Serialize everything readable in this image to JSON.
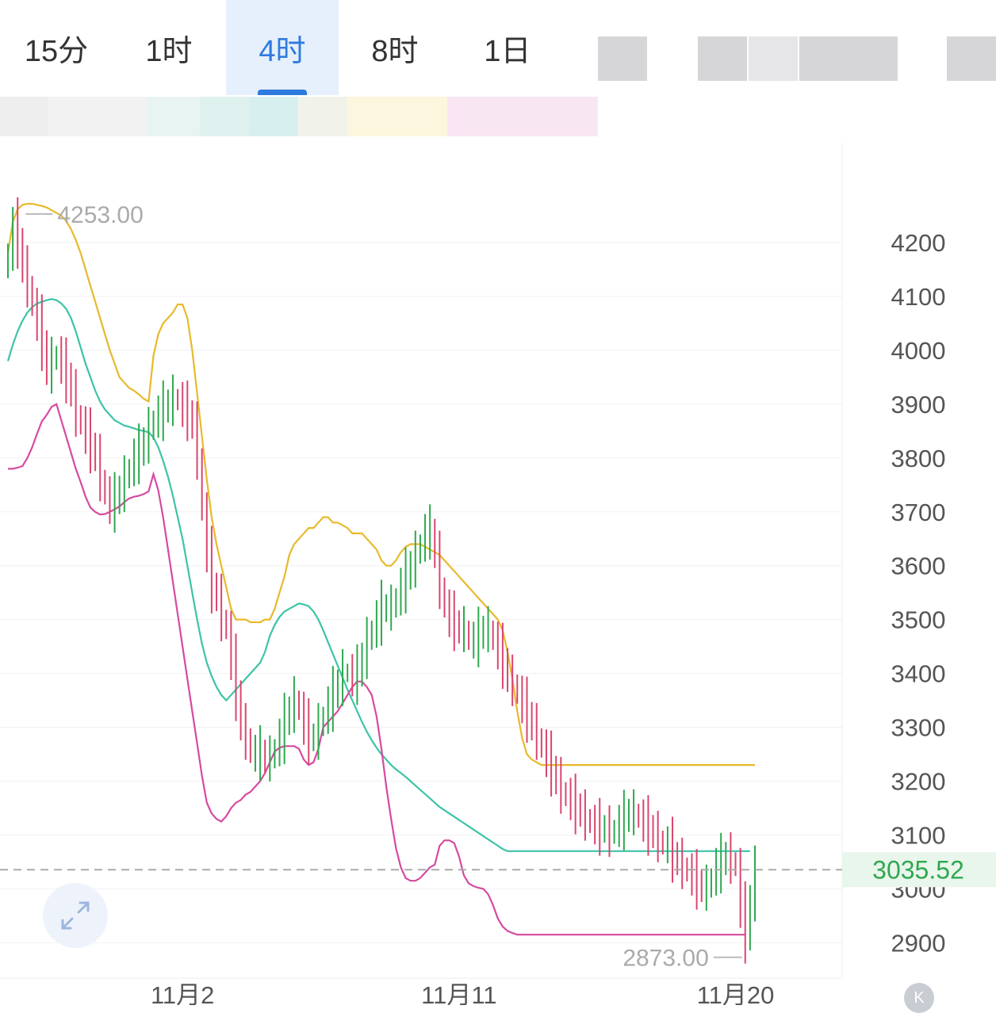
{
  "timeframe_tabs": [
    {
      "label": "15分",
      "active": false
    },
    {
      "label": "1时",
      "active": false
    },
    {
      "label": "4时",
      "active": true
    },
    {
      "label": "8时",
      "active": false
    },
    {
      "label": "1日",
      "active": false
    }
  ],
  "colors": {
    "up": "#2fa84f",
    "down": "#d9466e",
    "upper_band": "#e8b92c",
    "middle_band": "#3cc4a6",
    "lower_band": "#d64aa0",
    "accent": "#2e7be0",
    "axis_text": "#555555",
    "price_badge_bg": "#e9f6ec",
    "price_badge_text": "#2fa84f"
  },
  "icons": {
    "expand": "expand-arrows-icon",
    "k_button": "k-circle-icon"
  },
  "k_button_label": "K",
  "chart_data": {
    "type": "candlestick",
    "title": "",
    "ylim": [
      2800,
      4380
    ],
    "y_ticks": [
      4200,
      4100,
      4000,
      3900,
      3800,
      3700,
      3600,
      3500,
      3400,
      3300,
      3200,
      3100,
      3000,
      2900
    ],
    "x_tick_labels": [
      "11月2",
      "11月11",
      "11月20"
    ],
    "x_tick_indices": [
      36,
      93,
      150
    ],
    "high_marker": "4253.00",
    "low_marker": "2873.00",
    "high_marker_index": 3,
    "low_marker_index": 152,
    "current_price": "3035.52",
    "current_price_value": 3035.52,
    "closes": [
      4180,
      4230,
      4200,
      4150,
      4120,
      4080,
      4050,
      4010,
      3960,
      3980,
      3990,
      3970,
      3950,
      3920,
      3880,
      3860,
      3840,
      3820,
      3800,
      3760,
      3730,
      3710,
      3720,
      3740,
      3760,
      3780,
      3800,
      3810,
      3830,
      3850,
      3870,
      3880,
      3890,
      3900,
      3910,
      3905,
      3890,
      3880,
      3860,
      3800,
      3700,
      3620,
      3560,
      3540,
      3500,
      3480,
      3420,
      3360,
      3300,
      3280,
      3250,
      3250,
      3250,
      3240,
      3240,
      3260,
      3280,
      3310,
      3330,
      3350,
      3330,
      3300,
      3280,
      3280,
      3300,
      3320,
      3340,
      3360,
      3380,
      3400,
      3400,
      3390,
      3400,
      3430,
      3460,
      3480,
      3500,
      3520,
      3520,
      3520,
      3540,
      3560,
      3580,
      3600,
      3620,
      3640,
      3660,
      3660,
      3620,
      3560,
      3520,
      3500,
      3490,
      3480,
      3480,
      3460,
      3460,
      3470,
      3480,
      3480,
      3460,
      3440,
      3420,
      3390,
      3380,
      3360,
      3340,
      3320,
      3300,
      3280,
      3260,
      3240,
      3220,
      3200,
      3180,
      3170,
      3160,
      3150,
      3140,
      3130,
      3120,
      3115,
      3110,
      3110,
      3100,
      3110,
      3120,
      3130,
      3140,
      3140,
      3130,
      3120,
      3110,
      3100,
      3090,
      3080,
      3080,
      3060,
      3050,
      3040,
      3030,
      3020,
      3010,
      3000,
      3000,
      3020,
      3040,
      3050,
      3060,
      3050,
      3040,
      2960,
      2910,
      2980,
      3035.52
    ],
    "series": [
      {
        "key": "upper",
        "values": [
          4180,
          4238,
          4262,
          4270,
          4272,
          4272,
          4270,
          4268,
          4265,
          4260,
          4255,
          4250,
          4240,
          4225,
          4205,
          4180,
          4150,
          4120,
          4090,
          4060,
          4030,
          4000,
          3975,
          3950,
          3940,
          3930,
          3925,
          3918,
          3910,
          3905,
          3990,
          4030,
          4050,
          4060,
          4070,
          4085,
          4085,
          4060,
          4000,
          3920,
          3840,
          3760,
          3690,
          3640,
          3600,
          3560,
          3520,
          3500,
          3500,
          3500,
          3495,
          3495,
          3495,
          3500,
          3500,
          3520,
          3550,
          3580,
          3620,
          3640,
          3650,
          3660,
          3670,
          3670,
          3680,
          3690,
          3690,
          3680,
          3680,
          3675,
          3670,
          3660,
          3660,
          3660,
          3650,
          3640,
          3630,
          3610,
          3600,
          3600,
          3610,
          3625,
          3635,
          3640,
          3640,
          3640,
          3635,
          3630,
          3625,
          3620,
          3610,
          3600,
          3590,
          3580,
          3570,
          3560,
          3550,
          3540,
          3530,
          3520,
          3510,
          3500,
          3480,
          3440,
          3390,
          3330,
          3280,
          3250,
          3240,
          3235,
          3230,
          3230,
          3230,
          3230,
          3230,
          3230,
          3230,
          3230,
          3230,
          3230,
          3230,
          3230,
          3230,
          3230,
          3230,
          3230,
          3230,
          3230,
          3230,
          3230,
          3230,
          3230,
          3230,
          3230,
          3230,
          3230,
          3230,
          3230,
          3230,
          3230,
          3230,
          3230,
          3230,
          3230,
          3230,
          3230,
          3230,
          3230,
          3230,
          3230,
          3230,
          3230,
          3230,
          3230,
          3230
        ]
      },
      {
        "key": "middle",
        "values": [
          3980,
          4010,
          4035,
          4055,
          4070,
          4080,
          4087,
          4090,
          4093,
          4095,
          4093,
          4087,
          4077,
          4060,
          4035,
          4005,
          3975,
          3950,
          3925,
          3905,
          3890,
          3880,
          3870,
          3865,
          3860,
          3858,
          3855,
          3852,
          3850,
          3848,
          3838,
          3820,
          3795,
          3765,
          3730,
          3690,
          3650,
          3600,
          3550,
          3500,
          3455,
          3420,
          3395,
          3375,
          3360,
          3350,
          3360,
          3370,
          3380,
          3390,
          3400,
          3410,
          3420,
          3440,
          3470,
          3490,
          3505,
          3515,
          3520,
          3525,
          3530,
          3528,
          3525,
          3515,
          3500,
          3480,
          3458,
          3436,
          3414,
          3392,
          3370,
          3350,
          3330,
          3310,
          3292,
          3276,
          3262,
          3250,
          3240,
          3230,
          3222,
          3215,
          3208,
          3200,
          3192,
          3184,
          3176,
          3168,
          3160,
          3152,
          3146,
          3140,
          3134,
          3128,
          3122,
          3116,
          3110,
          3104,
          3098,
          3092,
          3086,
          3080,
          3074,
          3070,
          3070,
          3070,
          3070,
          3070,
          3070,
          3070,
          3070,
          3070,
          3070,
          3070,
          3070,
          3070,
          3070,
          3070,
          3070,
          3070,
          3070,
          3070,
          3070,
          3070,
          3070,
          3070,
          3070,
          3070,
          3070,
          3070,
          3070,
          3070,
          3070,
          3070,
          3070,
          3070,
          3070,
          3070,
          3070,
          3070,
          3070,
          3070,
          3070,
          3070,
          3070,
          3070,
          3070,
          3070,
          3070,
          3070,
          3070,
          3070,
          3070,
          3070
        ]
      },
      {
        "key": "lower",
        "values": [
          3780,
          3780,
          3782,
          3785,
          3800,
          3820,
          3845,
          3868,
          3880,
          3895,
          3900,
          3870,
          3840,
          3810,
          3780,
          3755,
          3728,
          3708,
          3700,
          3695,
          3696,
          3700,
          3705,
          3710,
          3718,
          3725,
          3728,
          3730,
          3733,
          3738,
          3770,
          3740,
          3690,
          3630,
          3570,
          3510,
          3450,
          3390,
          3330,
          3270,
          3210,
          3160,
          3140,
          3130,
          3125,
          3135,
          3150,
          3160,
          3165,
          3175,
          3180,
          3190,
          3200,
          3215,
          3235,
          3255,
          3262,
          3265,
          3265,
          3265,
          3260,
          3240,
          3230,
          3235,
          3260,
          3300,
          3310,
          3320,
          3330,
          3345,
          3360,
          3375,
          3385,
          3385,
          3375,
          3360,
          3320,
          3260,
          3190,
          3130,
          3075,
          3040,
          3020,
          3015,
          3015,
          3020,
          3030,
          3040,
          3045,
          3080,
          3090,
          3090,
          3085,
          3060,
          3025,
          3010,
          3005,
          3002,
          3000,
          2990,
          2970,
          2945,
          2930,
          2922,
          2918,
          2915,
          2915,
          2915,
          2915,
          2915,
          2915,
          2915,
          2915,
          2915,
          2915,
          2915,
          2915,
          2915,
          2915,
          2915,
          2915,
          2915,
          2915,
          2915,
          2915,
          2915,
          2915,
          2915,
          2915,
          2915,
          2915,
          2915,
          2915,
          2915,
          2915,
          2915,
          2915,
          2915,
          2915,
          2915,
          2915,
          2915,
          2915,
          2915,
          2915,
          2915,
          2915,
          2915,
          2915,
          2915,
          2915,
          2915,
          2915
        ]
      }
    ]
  }
}
